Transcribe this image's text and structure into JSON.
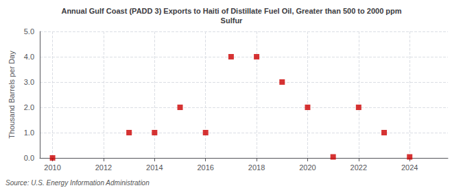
{
  "chart_data": {
    "type": "scatter",
    "title": "Annual Gulf Coast (PADD 3) Exports to Haiti of Distillate Fuel Oil, Greater than 500 to 2000 ppm\nSulfur",
    "ylabel": "Thousand Barrels per Day",
    "annotation": "Source: U.S. Energy Information Administration",
    "x": [
      2010,
      2013,
      2014,
      2015,
      2016,
      2017,
      2018,
      2019,
      2020,
      2021,
      2022,
      2023,
      2024
    ],
    "values": [
      0.0,
      1.0,
      1.0,
      2.0,
      1.0,
      4.0,
      4.0,
      3.0,
      2.0,
      0.04,
      2.0,
      1.0,
      0.04
    ],
    "color": "#cc0000",
    "marker": "square",
    "xlim": [
      2009.5,
      2025.5
    ],
    "xticks": [
      2010,
      2012,
      2014,
      2016,
      2018,
      2020,
      2022,
      2024
    ],
    "ylim": [
      0,
      5.0
    ],
    "yticks": [
      {
        "value": 0.0,
        "label": "0.0"
      },
      {
        "value": 1.0,
        "label": "1.0"
      },
      {
        "value": 2.0,
        "label": "2.0"
      },
      {
        "value": 3.0,
        "label": "3.0"
      },
      {
        "value": 4.0,
        "label": "4.0"
      },
      {
        "value": 5.0,
        "label": "5.0"
      }
    ],
    "grid": true
  }
}
